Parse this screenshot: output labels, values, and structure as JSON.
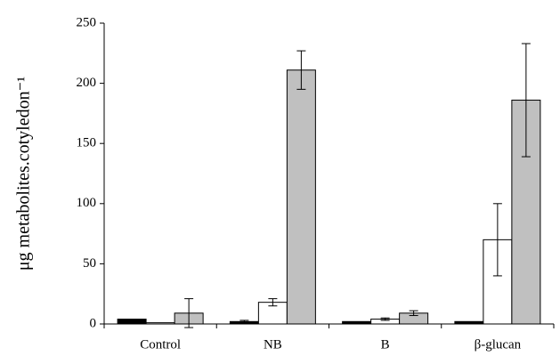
{
  "chart_data": {
    "type": "bar",
    "y_label": "μg metabolites.cotyledon⁻¹",
    "categories": [
      "Control",
      "NB",
      "B",
      "β-glucan"
    ],
    "series": [
      {
        "color": "#000000",
        "values": [
          4,
          2,
          2,
          2
        ],
        "errors": [
          null,
          1,
          null,
          null
        ]
      },
      {
        "color": "#ffffff",
        "values": [
          1,
          18,
          4,
          70
        ],
        "errors": [
          null,
          3,
          1,
          30
        ]
      },
      {
        "color": "#c0c0c0",
        "values": [
          9,
          211,
          9,
          186
        ],
        "errors": [
          12,
          16,
          2,
          47
        ]
      }
    ],
    "ylim": [
      0,
      250
    ],
    "yticks": [
      0,
      50,
      100,
      150,
      200,
      250
    ]
  }
}
